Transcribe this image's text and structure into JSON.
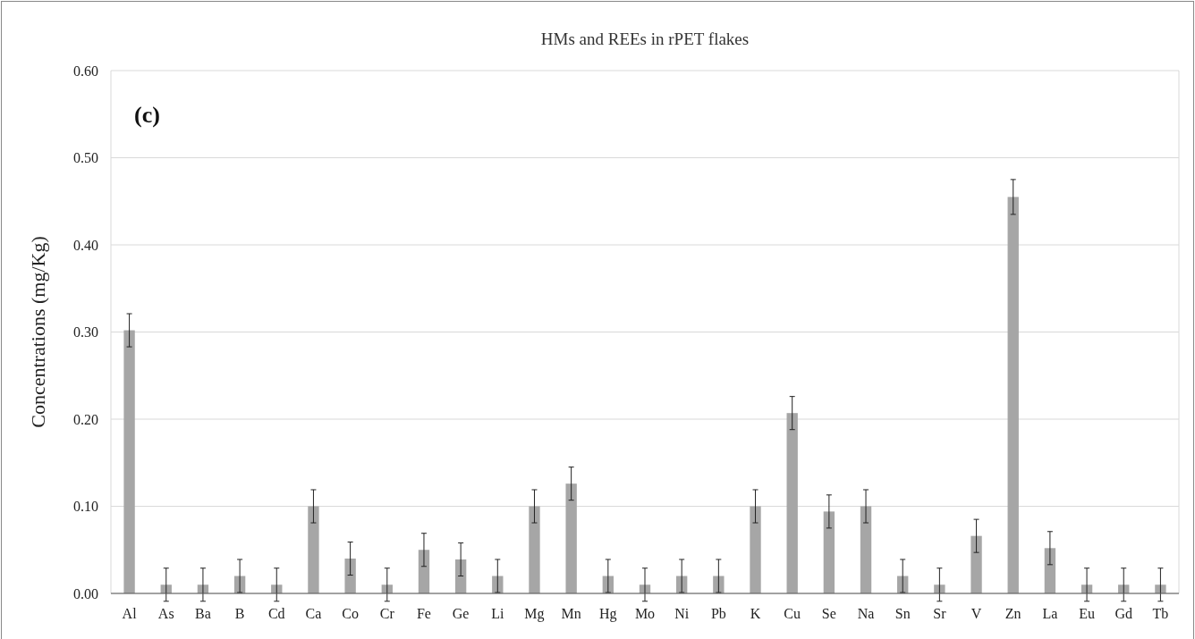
{
  "chart_data": {
    "type": "bar",
    "title": "HMs and REEs in rPET flakes",
    "ylabel": "Concentrations (mg/Kg)",
    "annotations": [
      "(c)"
    ],
    "categories": [
      "Al",
      "As",
      "Ba",
      "B",
      "Cd",
      "Ca",
      "Co",
      "Cr",
      "Fe",
      "Ge",
      "Li",
      "Mg",
      "Mn",
      "Hg",
      "Mo",
      "Ni",
      "Pb",
      "K",
      "Cu",
      "Se",
      "Na",
      "Sn",
      "Sr",
      "V",
      "Zn",
      "La",
      "Eu",
      "Gd",
      "Tb"
    ],
    "values": [
      0.302,
      0.01,
      0.01,
      0.02,
      0.01,
      0.1,
      0.04,
      0.01,
      0.05,
      0.039,
      0.02,
      0.1,
      0.126,
      0.02,
      0.01,
      0.02,
      0.02,
      0.1,
      0.207,
      0.094,
      0.1,
      0.02,
      0.01,
      0.066,
      0.455,
      0.052,
      0.01,
      0.01,
      0.01
    ],
    "errors": [
      0.019,
      0.019,
      0.019,
      0.019,
      0.019,
      0.019,
      0.019,
      0.019,
      0.019,
      0.019,
      0.019,
      0.019,
      0.019,
      0.019,
      0.019,
      0.019,
      0.019,
      0.019,
      0.019,
      0.019,
      0.019,
      0.019,
      0.019,
      0.019,
      0.02,
      0.019,
      0.019,
      0.019,
      0.019
    ],
    "color": "#a6a6a6",
    "ylim": [
      0,
      0.6
    ],
    "yticks": [
      {
        "value": 0,
        "label": "0.00"
      },
      {
        "value": 0.1,
        "label": "0.10"
      },
      {
        "value": 0.2,
        "label": "0.20"
      },
      {
        "value": 0.3,
        "label": "0.30"
      },
      {
        "value": 0.4,
        "label": "0.40"
      },
      {
        "value": 0.5,
        "label": "0.50"
      },
      {
        "value": 0.6,
        "label": "0.60"
      }
    ],
    "grid": "y"
  }
}
